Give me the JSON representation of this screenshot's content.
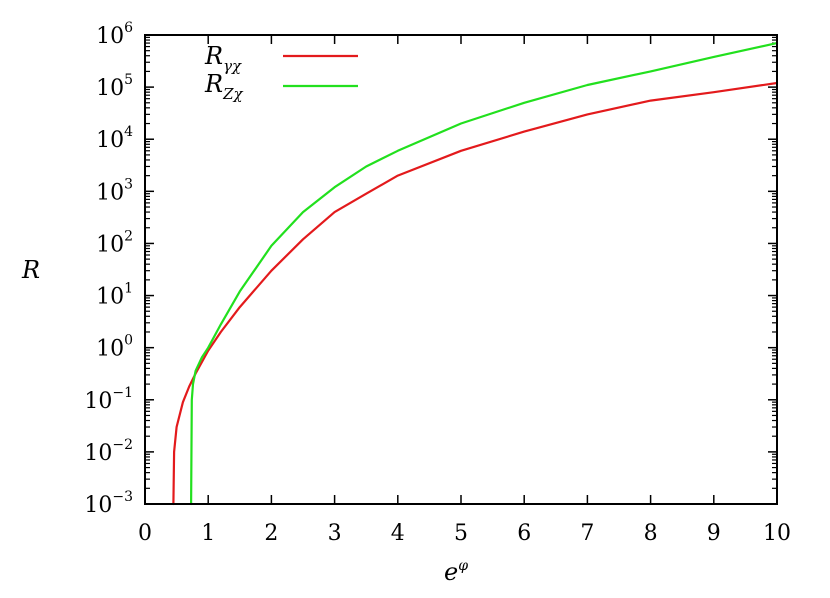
{
  "chart_data": {
    "type": "line",
    "xlabel": "e",
    "xlabel_sup": "φ",
    "ylabel": "R",
    "xlim": [
      0,
      10
    ],
    "ylim": [
      0.001,
      1000000
    ],
    "yscale": "log",
    "xticks": [
      "0",
      "1",
      "2",
      "3",
      "4",
      "5",
      "6",
      "7",
      "8",
      "9",
      "10"
    ],
    "yticks": [
      {
        "base": "10",
        "exp": "−3"
      },
      {
        "base": "10",
        "exp": "−2"
      },
      {
        "base": "10",
        "exp": "−1"
      },
      {
        "base": "10",
        "exp": "0"
      },
      {
        "base": "10",
        "exp": "1"
      },
      {
        "base": "10",
        "exp": "2"
      },
      {
        "base": "10",
        "exp": "3"
      },
      {
        "base": "10",
        "exp": "4"
      },
      {
        "base": "10",
        "exp": "5"
      },
      {
        "base": "10",
        "exp": "6"
      }
    ],
    "legend_position": "top-left",
    "grid": false,
    "series": [
      {
        "name": "R",
        "name_sub": "γχ",
        "color": "#e31a1c",
        "x": [
          0.45,
          0.46,
          0.5,
          0.6,
          0.7,
          0.8,
          1.0,
          1.2,
          1.5,
          2.0,
          2.5,
          3.0,
          3.5,
          4.0,
          5.0,
          6.0,
          7.0,
          8.0,
          9.0,
          10.0
        ],
        "y": [
          0.001,
          0.01,
          0.03,
          0.09,
          0.18,
          0.32,
          0.88,
          2.0,
          6.0,
          30,
          120,
          400,
          900,
          2000,
          6000,
          14000,
          30000,
          55000,
          80000,
          120000
        ]
      },
      {
        "name": "R",
        "name_sub": "Zχ",
        "color": "#22e01e",
        "x": [
          0.73,
          0.74,
          0.76,
          0.8,
          0.9,
          1.0,
          1.2,
          1.5,
          2.0,
          2.5,
          3.0,
          3.5,
          4.0,
          5.0,
          6.0,
          7.0,
          8.0,
          9.0,
          10.0
        ],
        "y": [
          0.001,
          0.1,
          0.2,
          0.36,
          0.65,
          1.0,
          2.8,
          12,
          90,
          400,
          1200,
          3000,
          6000,
          20000,
          50000,
          110000,
          200000,
          380000,
          700000
        ]
      }
    ]
  }
}
